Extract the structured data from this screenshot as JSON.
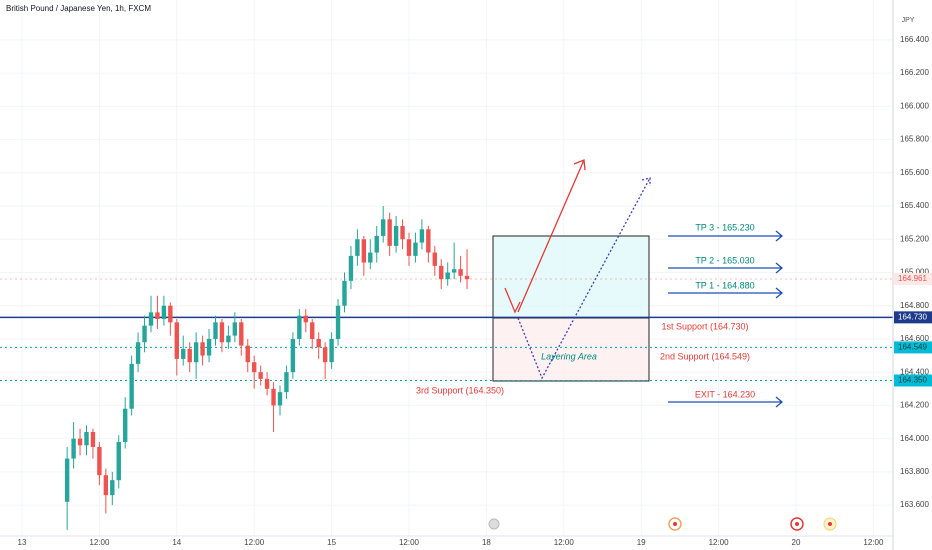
{
  "chart_data": {
    "type": "candlestick",
    "title": "British Pound / Japanese Yen, 1h, FXCM",
    "currency": "JPY",
    "up_color": "#26a69a",
    "down_color": "#ef5350",
    "xlim": [
      -3.41,
      135.04
    ],
    "ylim": [
      163.39,
      166.64
    ],
    "xticks": [
      {
        "value": 0,
        "label": "13"
      },
      {
        "value": 12,
        "label": "12:00"
      },
      {
        "value": 24,
        "label": "14"
      },
      {
        "value": 36,
        "label": "12:00"
      },
      {
        "value": 48,
        "label": "15"
      },
      {
        "value": 60,
        "label": "12:00"
      },
      {
        "value": 72,
        "label": "18"
      },
      {
        "value": 84,
        "label": "12:00"
      },
      {
        "value": 96,
        "label": "19"
      },
      {
        "value": 108,
        "label": "12:00"
      },
      {
        "value": 120,
        "label": "20"
      },
      {
        "value": 132,
        "label": "12:00"
      }
    ],
    "yticks": [
      {
        "value": 163.6,
        "label": "163.600"
      },
      {
        "value": 163.8,
        "label": "163.800"
      },
      {
        "value": 164,
        "label": "164.000"
      },
      {
        "value": 164.2,
        "label": "164.200"
      },
      {
        "value": 164.4,
        "label": "164.400"
      },
      {
        "value": 164.6,
        "label": "164.600"
      },
      {
        "value": 164.8,
        "label": "164.800"
      },
      {
        "value": 165,
        "label": "165.000"
      },
      {
        "value": 165.2,
        "label": "165.200"
      },
      {
        "value": 165.4,
        "label": "165.400"
      },
      {
        "value": 165.6,
        "label": "165.600"
      },
      {
        "value": 165.8,
        "label": "165.800"
      },
      {
        "value": 166,
        "label": "166.000"
      },
      {
        "value": 166.2,
        "label": "166.200"
      },
      {
        "value": 166.4,
        "label": "166.400"
      }
    ],
    "x": [
      7,
      8,
      9,
      10,
      11,
      12,
      13,
      14,
      15,
      16,
      17,
      18,
      19,
      20,
      21,
      22,
      23,
      24,
      25,
      26,
      27,
      28,
      29,
      30,
      31,
      32,
      33,
      34,
      35,
      36,
      37,
      38,
      39,
      40,
      41,
      42,
      43,
      44,
      45,
      46,
      47,
      48,
      49,
      50,
      51,
      52,
      53,
      54,
      55,
      56,
      57,
      58,
      59,
      60,
      61,
      62,
      63,
      64,
      65,
      66,
      67,
      68,
      69
    ],
    "open": [
      163.62,
      163.88,
      164.0,
      163.96,
      164.04,
      163.95,
      163.78,
      163.66,
      163.75,
      163.98,
      164.18,
      164.45,
      164.58,
      164.68,
      164.76,
      164.72,
      164.8,
      164.7,
      164.48,
      164.54,
      164.46,
      164.58,
      164.5,
      164.6,
      164.7,
      164.58,
      164.62,
      164.7,
      164.56,
      164.46,
      164.4,
      164.36,
      164.3,
      164.2,
      164.28,
      164.4,
      164.6,
      164.74,
      164.7,
      164.6,
      164.55,
      164.46,
      164.6,
      164.8,
      164.95,
      165.1,
      165.2,
      165.06,
      165.12,
      165.22,
      165.32,
      165.16,
      165.28,
      165.2,
      165.1,
      165.18,
      165.26,
      165.12,
      165.04,
      164.96,
      165.0,
      165.02,
      164.98
    ],
    "high": [
      163.95,
      164.1,
      164.06,
      164.08,
      164.06,
      163.98,
      163.82,
      163.8,
      164.02,
      164.25,
      164.5,
      164.64,
      164.74,
      164.86,
      164.86,
      164.86,
      164.82,
      164.72,
      164.62,
      164.58,
      164.64,
      164.62,
      164.66,
      164.74,
      164.72,
      164.68,
      164.76,
      164.72,
      164.6,
      164.5,
      164.44,
      164.4,
      164.34,
      164.32,
      164.44,
      164.64,
      164.78,
      164.78,
      164.72,
      164.64,
      164.58,
      164.64,
      164.84,
      165.0,
      165.16,
      165.26,
      165.22,
      165.2,
      165.28,
      165.4,
      165.36,
      165.34,
      165.32,
      165.24,
      165.24,
      165.32,
      165.28,
      165.16,
      165.08,
      165.06,
      165.18,
      165.1,
      165.14
    ],
    "low": [
      163.45,
      163.82,
      163.9,
      163.9,
      163.88,
      163.72,
      163.55,
      163.6,
      163.7,
      163.94,
      164.14,
      164.4,
      164.52,
      164.64,
      164.66,
      164.68,
      164.62,
      164.38,
      164.44,
      164.4,
      164.36,
      164.44,
      164.46,
      164.56,
      164.52,
      164.54,
      164.58,
      164.5,
      164.4,
      164.3,
      164.32,
      164.26,
      164.04,
      164.14,
      164.24,
      164.36,
      164.56,
      164.64,
      164.54,
      164.48,
      164.36,
      164.42,
      164.56,
      164.76,
      164.9,
      165.04,
      164.98,
      165.02,
      165.06,
      165.18,
      165.1,
      165.12,
      165.14,
      165.04,
      165.06,
      165.14,
      165.06,
      164.98,
      164.9,
      164.92,
      164.96,
      164.94,
      164.9
    ],
    "close": [
      163.88,
      164.0,
      163.96,
      164.04,
      163.95,
      163.78,
      163.66,
      163.75,
      163.98,
      164.18,
      164.45,
      164.58,
      164.68,
      164.76,
      164.72,
      164.8,
      164.7,
      164.48,
      164.54,
      164.46,
      164.58,
      164.5,
      164.6,
      164.7,
      164.58,
      164.62,
      164.7,
      164.56,
      164.46,
      164.4,
      164.36,
      164.3,
      164.2,
      164.28,
      164.4,
      164.6,
      164.74,
      164.7,
      164.6,
      164.55,
      164.46,
      164.6,
      164.8,
      164.95,
      165.1,
      165.2,
      165.06,
      165.12,
      165.22,
      165.32,
      165.16,
      165.28,
      165.2,
      165.1,
      165.18,
      165.26,
      165.12,
      165.04,
      164.96,
      165.0,
      165.02,
      164.98,
      164.96
    ],
    "levels": [
      {
        "value": 164.961,
        "label": "164.961",
        "color": "#ef5350",
        "label_bg": "#fde8e8",
        "style": "dotted"
      },
      {
        "value": 164.73,
        "label": "164.730",
        "color": "#1e3a8a",
        "label_bg": "#1e3a8a",
        "style": "solid"
      },
      {
        "value": 164.549,
        "label": "164.549",
        "color": "#00a5b8",
        "label_bg": "#00bcd4",
        "style": "dotted"
      },
      {
        "value": 164.35,
        "label": "164.350",
        "color": "#00a5b8",
        "label_bg": "#00bcd4",
        "style": "dotted"
      }
    ],
    "annotations": [
      "TP 3 - 165.230",
      "TP 2 - 165.030",
      "TP 1 - 164.880",
      "1st Support (164.730)",
      "2nd Support (164.549)",
      "3rd Support (164.350)",
      "EXIT - 164.230",
      "Layering Area"
    ]
  }
}
